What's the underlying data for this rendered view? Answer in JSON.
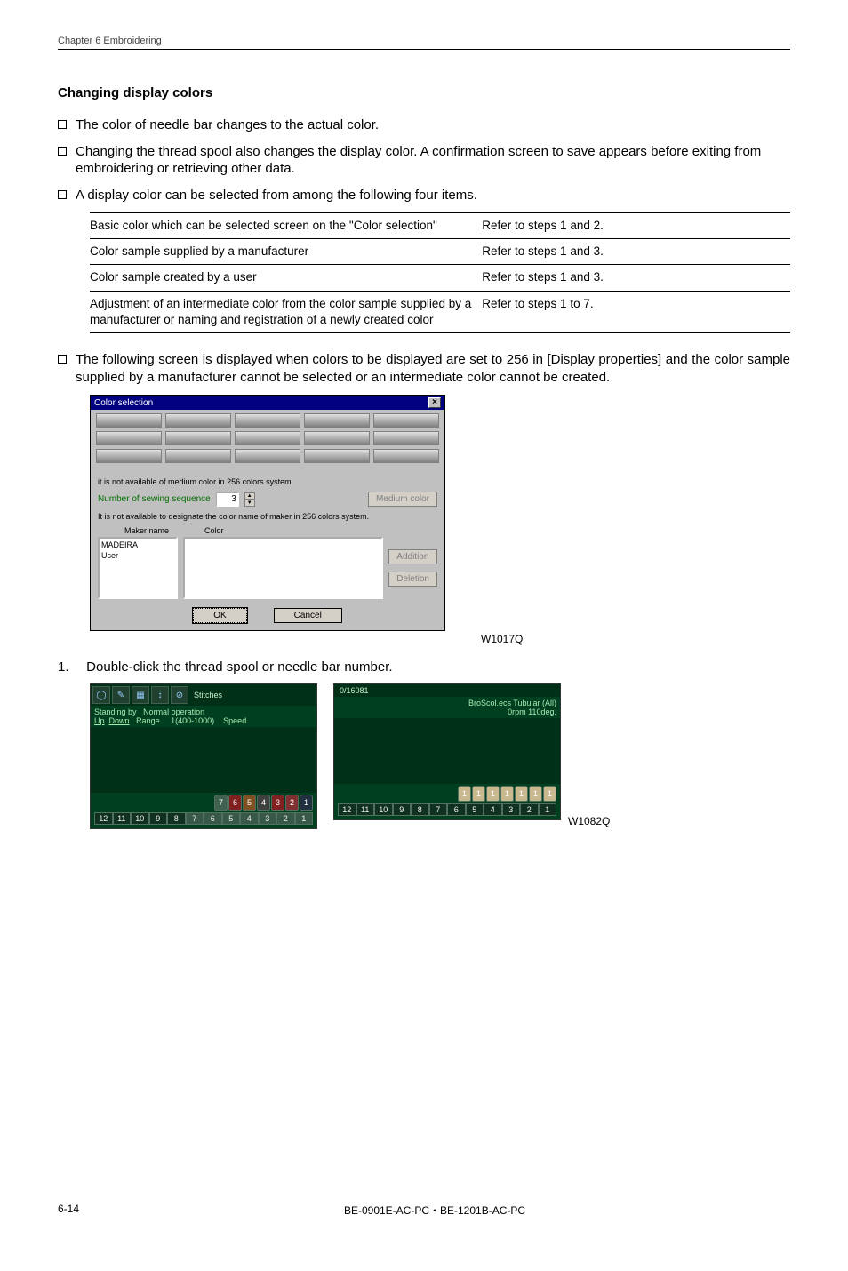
{
  "header": {
    "chapter": "Chapter 6   Embroidering"
  },
  "section": {
    "title": "Changing display colors"
  },
  "bullets": {
    "b1": "The color of needle bar changes to the actual color.",
    "b2": "Changing the thread spool also changes the display color.   A confirmation screen to save appears before exiting from embroidering or retrieving other data.",
    "b3": "A display color can be selected from among the following four items.",
    "b4": "The following screen is displayed when colors to be displayed are set to 256 in [Display properties] and the color sample supplied by a manufacturer cannot be selected or an intermediate color cannot be created."
  },
  "table": {
    "rows": [
      {
        "left": "Basic color which can be selected screen on the \"Color selection\"",
        "right": "Refer to steps 1 and 2."
      },
      {
        "left": "Color sample supplied by a manufacturer",
        "right": "Refer to steps 1 and 3."
      },
      {
        "left": "Color sample created by a user",
        "right": "Refer to steps 1 and 3."
      },
      {
        "left": "Adjustment of an intermediate color from the color sample supplied by a manufacturer or naming and registration of a newly created color",
        "right": "Refer to steps 1 to 7."
      }
    ]
  },
  "dialog": {
    "title": "Color selection",
    "close_x": "×",
    "note1": "it is not available of medium color in 256 colors system",
    "seq_label": "Number of sewing sequence",
    "seq_value": "3",
    "medium_btn": "Medium color",
    "note2": "It is not available to designate the color name of maker in 256 colors system.",
    "maker_label": "Maker name",
    "color_label": "Color",
    "maker1": "MADEIRA",
    "maker2": "User",
    "add_btn": "Addition",
    "del_btn": "Deletion",
    "ok": "OK",
    "cancel": "Cancel"
  },
  "dialog_code": "W1017Q",
  "step": {
    "num": "1.",
    "text": "Double-click the thread spool or needle bar number."
  },
  "panelA": {
    "ico_sound": "◯",
    "ico_brush": "✎",
    "ico_grid": "▦",
    "ico_arrow": "↕",
    "ico_stop": "⊘",
    "stitches_label": "Stitches",
    "standby": "Standing by",
    "normal": "Normal operation",
    "up": "Up",
    "down": "Down",
    "range_label": "Range",
    "range_val": "1(400-1000)",
    "speed_label": "Speed",
    "spools": [
      {
        "n": "7",
        "c": "#406050"
      },
      {
        "n": "6",
        "c": "#802020"
      },
      {
        "n": "5",
        "c": "#805020"
      },
      {
        "n": "4",
        "c": "#404040"
      },
      {
        "n": "3",
        "c": "#802020"
      },
      {
        "n": "2",
        "c": "#803030"
      },
      {
        "n": "1",
        "c": "#203040"
      }
    ],
    "nums": [
      "12",
      "11",
      "10",
      "9",
      "8",
      "7",
      "6",
      "5",
      "4",
      "3",
      "2",
      "1"
    ],
    "hl_from_right": 7
  },
  "panelB": {
    "stitches_count": "0/16081",
    "title_r": "BroScol.ecs Tubular (All)",
    "rpm": "0rpm 110deg.",
    "spools": [
      {
        "n": "1",
        "c": "#c8b890"
      },
      {
        "n": "1",
        "c": "#c8b890"
      },
      {
        "n": "1",
        "c": "#c8b890"
      },
      {
        "n": "1",
        "c": "#c8b890"
      },
      {
        "n": "1",
        "c": "#c8b890"
      },
      {
        "n": "1",
        "c": "#c8b890"
      },
      {
        "n": "1",
        "c": "#c8b890"
      }
    ],
    "nums": [
      "12",
      "11",
      "10",
      "9",
      "8",
      "7",
      "6",
      "5",
      "4",
      "3",
      "2",
      "1"
    ]
  },
  "panel_code": "W1082Q",
  "footer": {
    "left": "6-14",
    "center": "BE-0901E-AC-PC・BE-1201B-AC-PC"
  }
}
